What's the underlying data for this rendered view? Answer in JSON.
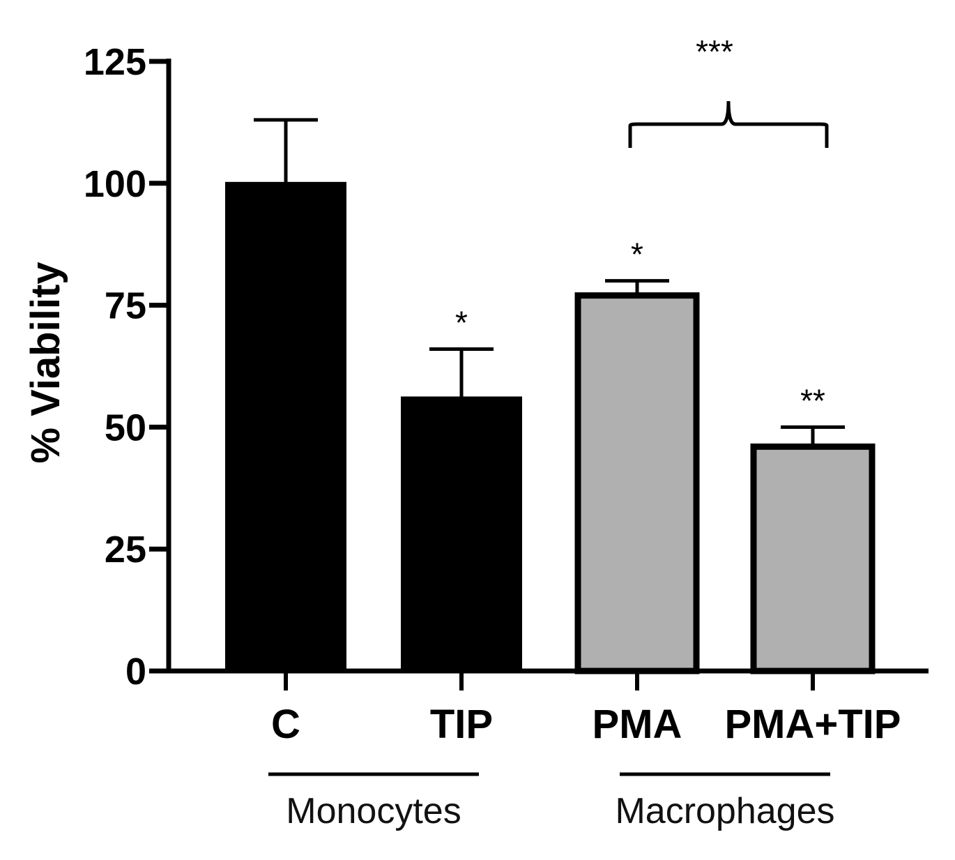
{
  "chart_data": {
    "type": "bar",
    "title": "",
    "xlabel": "",
    "ylabel": "% Viability",
    "ylim": [
      0,
      125
    ],
    "yticks": [
      "0",
      "25",
      "50",
      "75",
      "100",
      "125"
    ],
    "categories": [
      "C",
      "TIP",
      "PMA",
      "PMA+TIP"
    ],
    "values": [
      100,
      56,
      77,
      46
    ],
    "errors": [
      13,
      10,
      3,
      4
    ],
    "colors": [
      "#000000",
      "#000000",
      "#b0b0b0",
      "#b0b0b0"
    ],
    "significance": [
      "",
      "*",
      "*",
      "**"
    ],
    "groups": [
      {
        "label": "Monocytes",
        "categories": [
          "C",
          "TIP"
        ]
      },
      {
        "label": "Macrophages",
        "categories": [
          "PMA",
          "PMA+TIP"
        ]
      }
    ],
    "bracket": {
      "from": "PMA",
      "to": "PMA+TIP",
      "label": "***"
    },
    "grid": false,
    "legend": "none"
  }
}
